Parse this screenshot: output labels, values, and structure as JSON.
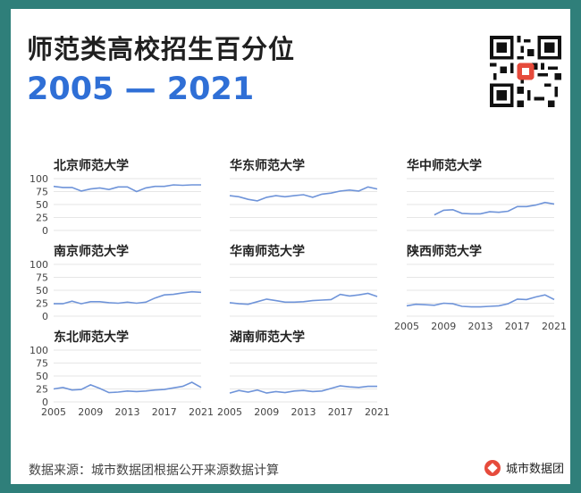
{
  "title": "师范类高校招生百分位",
  "subtitle": "2005 — 2021",
  "footer": {
    "source": "数据来源：城市数据团根据公开来源数据计算",
    "brand": "城市数据团"
  },
  "colors": {
    "background": "#2f7f7a",
    "series": "#6f94d9",
    "accent": "#2f6fd6"
  },
  "chart_data": [
    {
      "type": "line",
      "title": "北京师范大学",
      "x": [
        2005,
        2006,
        2007,
        2008,
        2009,
        2010,
        2011,
        2012,
        2013,
        2014,
        2015,
        2016,
        2017,
        2018,
        2019,
        2020,
        2021
      ],
      "y": [
        85,
        83,
        83,
        76,
        80,
        82,
        79,
        84,
        84,
        75,
        82,
        85,
        85,
        88,
        87,
        88,
        88
      ],
      "ylim": [
        0,
        100
      ],
      "yticks": [
        "0",
        "25",
        "50",
        "75",
        "100"
      ],
      "xticks": []
    },
    {
      "type": "line",
      "title": "华东师范大学",
      "x": [
        2005,
        2006,
        2007,
        2008,
        2009,
        2010,
        2011,
        2012,
        2013,
        2014,
        2015,
        2016,
        2017,
        2018,
        2019,
        2020,
        2021
      ],
      "y": [
        67,
        65,
        60,
        57,
        64,
        67,
        65,
        67,
        69,
        64,
        70,
        72,
        76,
        78,
        76,
        84,
        80
      ],
      "ylim": [
        0,
        100
      ],
      "yticks": [],
      "xticks": []
    },
    {
      "type": "line",
      "title": "华中师范大学",
      "x": [
        2008,
        2009,
        2010,
        2011,
        2012,
        2013,
        2014,
        2015,
        2016,
        2017,
        2018,
        2019,
        2020,
        2021
      ],
      "y": [
        30,
        39,
        40,
        33,
        32,
        32,
        36,
        35,
        37,
        46,
        46,
        49,
        54,
        51
      ],
      "ylim": [
        0,
        100
      ],
      "yticks": [],
      "xticks": []
    },
    {
      "type": "line",
      "title": "南京师范大学",
      "x": [
        2005,
        2006,
        2007,
        2008,
        2009,
        2010,
        2011,
        2012,
        2013,
        2014,
        2015,
        2016,
        2017,
        2018,
        2019,
        2020,
        2021
      ],
      "y": [
        24,
        24,
        29,
        24,
        28,
        28,
        26,
        25,
        27,
        25,
        27,
        35,
        41,
        42,
        45,
        47,
        46
      ],
      "ylim": [
        0,
        100
      ],
      "yticks": [
        "0",
        "25",
        "50",
        "75",
        "100"
      ],
      "xticks": []
    },
    {
      "type": "line",
      "title": "华南师范大学",
      "x": [
        2005,
        2006,
        2007,
        2008,
        2009,
        2010,
        2011,
        2012,
        2013,
        2014,
        2015,
        2016,
        2017,
        2018,
        2019,
        2020,
        2021
      ],
      "y": [
        26,
        24,
        23,
        28,
        33,
        30,
        27,
        27,
        28,
        30,
        31,
        32,
        42,
        39,
        41,
        44,
        38
      ],
      "ylim": [
        0,
        100
      ],
      "yticks": [],
      "xticks": []
    },
    {
      "type": "line",
      "title": "陕西师范大学",
      "x": [
        2005,
        2006,
        2007,
        2008,
        2009,
        2010,
        2011,
        2012,
        2013,
        2014,
        2015,
        2016,
        2017,
        2018,
        2019,
        2020,
        2021
      ],
      "y": [
        20,
        23,
        22,
        21,
        25,
        24,
        19,
        18,
        18,
        19,
        20,
        24,
        33,
        32,
        37,
        41,
        32
      ],
      "ylim": [
        0,
        100
      ],
      "yticks": [],
      "xticks": [
        "2005",
        "2009",
        "2013",
        "2017",
        "2021"
      ]
    },
    {
      "type": "line",
      "title": "东北师范大学",
      "x": [
        2005,
        2006,
        2007,
        2008,
        2009,
        2010,
        2011,
        2012,
        2013,
        2014,
        2015,
        2016,
        2017,
        2018,
        2019,
        2020,
        2021
      ],
      "y": [
        25,
        28,
        23,
        24,
        33,
        26,
        18,
        19,
        21,
        20,
        21,
        23,
        24,
        27,
        30,
        38,
        28
      ],
      "ylim": [
        0,
        100
      ],
      "yticks": [
        "0",
        "25",
        "50",
        "75",
        "100"
      ],
      "xticks": [
        "2005",
        "2009",
        "2013",
        "2017",
        "2021"
      ]
    },
    {
      "type": "line",
      "title": "湖南师范大学",
      "x": [
        2005,
        2006,
        2007,
        2008,
        2009,
        2010,
        2011,
        2012,
        2013,
        2014,
        2015,
        2016,
        2017,
        2018,
        2019,
        2020,
        2021
      ],
      "y": [
        17,
        22,
        19,
        23,
        17,
        20,
        18,
        21,
        22,
        20,
        21,
        26,
        31,
        29,
        28,
        30,
        30
      ],
      "ylim": [
        0,
        100
      ],
      "yticks": [],
      "xticks": [
        "2005",
        "2009",
        "2013",
        "2017",
        "2021"
      ]
    }
  ]
}
